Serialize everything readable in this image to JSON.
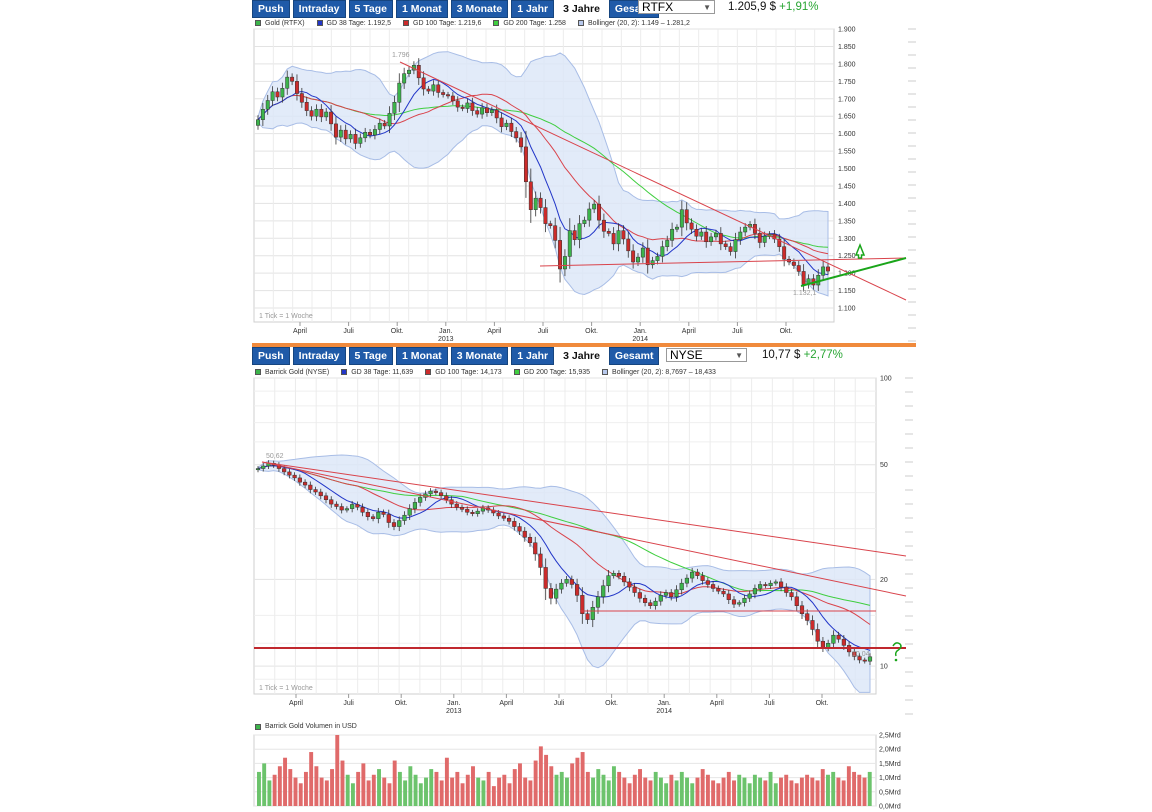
{
  "toolbar_buttons": [
    "Push",
    "Intraday",
    "5 Tage",
    "1 Monat",
    "3 Monate",
    "1 Jahr",
    "3 Jahre",
    "Gesamt"
  ],
  "active_button": "3 Jahre",
  "colors": {
    "button_bg": "#1f5aa8",
    "separator": "#f08a3c",
    "bull": "#3cb44b",
    "bear": "#cc2b2b",
    "gd38": "#2236c8",
    "gd100": "#d9434b",
    "gd200": "#3fce3f",
    "bollinger_fill": "#dbe6f7",
    "trend_green": "#1aa51a",
    "positive_change": "#27a532"
  },
  "gold_panel": {
    "exchange": "RTFX",
    "price": "1.205,9 $",
    "change": "+1,91%",
    "legend": [
      "Gold (RTFX)",
      "GD 38 Tage: 1.192,5",
      "GD 100 Tage: 1.219,6",
      "GD 200 Tage: 1.258",
      "Bollinger (20, 2): 1.149 – 1.281,2"
    ],
    "tick_note": "1 Tick = 1 Woche",
    "high_label": "1.796",
    "low_label": "1.132,1",
    "chart_data": {
      "type": "candlestick",
      "title": "Gold (RTFX)",
      "x_labels": [
        "April",
        "Juli",
        "Okt.",
        "Jan.",
        "April",
        "Juli",
        "Okt.",
        "Jan.",
        "April",
        "Juli",
        "Okt."
      ],
      "year_labels": [
        {
          "label": "2013",
          "under": "Jan."
        },
        {
          "label": "2014",
          "under": "Jan."
        }
      ],
      "y_ticks": [
        "1.900",
        "1.850",
        "1.800",
        "1.750",
        "1.700",
        "1.650",
        "1.600",
        "1.550",
        "1.500",
        "1.450",
        "1.400",
        "1.350",
        "1.300",
        "1.250",
        "1.200",
        "1.150",
        "1.100"
      ],
      "ylim": [
        1060,
        1900
      ],
      "closes": [
        1640,
        1670,
        1695,
        1720,
        1705,
        1730,
        1762,
        1750,
        1715,
        1690,
        1666,
        1650,
        1670,
        1648,
        1662,
        1628,
        1590,
        1610,
        1585,
        1598,
        1572,
        1588,
        1604,
        1596,
        1612,
        1630,
        1622,
        1658,
        1690,
        1745,
        1772,
        1782,
        1796,
        1760,
        1728,
        1722,
        1740,
        1718,
        1712,
        1708,
        1694,
        1676,
        1672,
        1688,
        1666,
        1656,
        1674,
        1660,
        1668,
        1645,
        1620,
        1630,
        1606,
        1588,
        1562,
        1462,
        1382,
        1415,
        1388,
        1342,
        1336,
        1294,
        1212,
        1248,
        1322,
        1296,
        1342,
        1352,
        1384,
        1398,
        1352,
        1320,
        1314,
        1284,
        1322,
        1298,
        1264,
        1232,
        1246,
        1272,
        1224,
        1236,
        1248,
        1276,
        1294,
        1326,
        1332,
        1382,
        1344,
        1326,
        1306,
        1318,
        1290,
        1304,
        1314,
        1284,
        1276,
        1262,
        1296,
        1318,
        1332,
        1340,
        1314,
        1288,
        1306,
        1312,
        1298,
        1276,
        1240,
        1232,
        1222,
        1205,
        1168,
        1184,
        1166,
        1194,
        1218,
        1206
      ]
    },
    "volume_series": []
  },
  "barrick_panel": {
    "exchange": "NYSE",
    "price": "10,77 $",
    "change": "+2,77%",
    "legend": [
      "Barrick Gold (NYSE)",
      "GD 38 Tage: 11,639",
      "GD 100 Tage: 14,173",
      "GD 200 Tage: 15,935",
      "Bollinger (20, 2): 8,7697 – 18,433"
    ],
    "tick_note": "1 Tick = 1 Woche",
    "high_label": "50,62",
    "low_label": "10,04",
    "chart_data": {
      "type": "candlestick",
      "title": "Barrick Gold (NYSE)",
      "x_labels": [
        "April",
        "Juli",
        "Okt.",
        "Jan.",
        "April",
        "Juli",
        "Okt.",
        "Jan.",
        "April",
        "Juli",
        "Okt."
      ],
      "year_labels": [
        {
          "label": "2013",
          "under": "Jan."
        },
        {
          "label": "2014",
          "under": "Jan."
        }
      ],
      "y_ticks": [
        "100",
        "50",
        "20",
        "10"
      ],
      "yscale": "log",
      "ylim": [
        8,
        100
      ],
      "closes": [
        48.5,
        49.5,
        50.6,
        49.8,
        48.5,
        47.2,
        46.0,
        45.0,
        43.5,
        42.5,
        41.0,
        40.2,
        39.0,
        37.8,
        36.5,
        35.8,
        34.8,
        35.2,
        36.4,
        35.6,
        34.2,
        33.0,
        32.5,
        34.2,
        33.6,
        31.5,
        30.5,
        32.0,
        33.4,
        35.2,
        37.0,
        38.5,
        39.6,
        40.5,
        40.0,
        39.0,
        37.8,
        36.5,
        35.6,
        35.0,
        34.2,
        33.8,
        34.5,
        35.4,
        34.8,
        34.0,
        33.2,
        32.6,
        31.8,
        30.5,
        29.4,
        28.0,
        26.8,
        24.5,
        22.0,
        18.6,
        17.2,
        18.5,
        19.4,
        20.0,
        19.2,
        17.6,
        15.2,
        14.5,
        16.0,
        17.4,
        19.0,
        20.6,
        21.0,
        20.5,
        19.6,
        18.8,
        18.0,
        17.2,
        16.6,
        16.2,
        16.8,
        17.6,
        18.0,
        17.4,
        18.4,
        19.4,
        20.2,
        21.2,
        20.6,
        19.8,
        19.2,
        18.6,
        18.2,
        17.8,
        17.0,
        16.4,
        16.6,
        17.2,
        17.8,
        18.6,
        19.2,
        19.0,
        19.4,
        19.6,
        18.8,
        18.0,
        17.4,
        16.2,
        15.2,
        14.4,
        13.4,
        12.2,
        11.6,
        12.0,
        12.8,
        12.4,
        11.8,
        11.2,
        10.8,
        10.5,
        10.4,
        10.77
      ]
    },
    "volume_label": "Barrick Gold Volumen in USD",
    "volume_chart_data": {
      "type": "bar",
      "title": "Barrick Gold Volumen in USD",
      "y_ticks": [
        "2,5Mrd",
        "2,0Mrd",
        "1,5Mrd",
        "1,0Mrd",
        "0,5Mrd",
        "0,0Mrd"
      ],
      "ylim": [
        0,
        2.5
      ],
      "values": [
        1.2,
        1.5,
        0.9,
        1.1,
        1.4,
        1.7,
        1.3,
        1.0,
        0.8,
        1.2,
        1.9,
        1.4,
        1.0,
        0.9,
        1.3,
        2.5,
        1.6,
        1.1,
        0.8,
        1.2,
        1.5,
        0.9,
        1.1,
        1.3,
        1.0,
        0.8,
        1.6,
        1.2,
        0.9,
        1.4,
        1.1,
        0.8,
        1.0,
        1.3,
        1.2,
        0.9,
        1.7,
        1.0,
        1.2,
        0.8,
        1.1,
        1.4,
        1.0,
        0.9,
        1.2,
        0.7,
        1.0,
        1.1,
        0.8,
        1.3,
        1.5,
        1.0,
        0.9,
        1.6,
        2.1,
        1.8,
        1.4,
        1.1,
        1.2,
        1.0,
        1.5,
        1.7,
        1.9,
        1.2,
        1.0,
        1.3,
        1.1,
        0.9,
        1.4,
        1.2,
        1.0,
        0.8,
        1.1,
        1.3,
        1.0,
        0.9,
        1.2,
        1.0,
        0.8,
        1.1,
        0.9,
        1.2,
        1.0,
        0.8,
        1.0,
        1.3,
        1.1,
        0.9,
        0.8,
        1.0,
        1.2,
        0.9,
        1.1,
        1.0,
        0.8,
        1.1,
        1.0,
        0.9,
        1.2,
        0.8,
        1.0,
        1.1,
        0.9,
        0.8,
        1.0,
        1.1,
        1.0,
        0.9,
        1.3,
        1.1,
        1.2,
        1.0,
        0.9,
        1.4,
        1.2,
        1.1,
        1.0,
        1.2
      ]
    }
  }
}
